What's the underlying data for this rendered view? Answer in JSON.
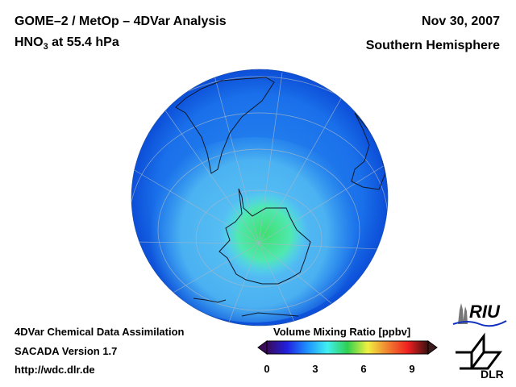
{
  "header": {
    "title_line1": "GOME–2 / MetOp – 4DVar Analysis",
    "title_species": "HNO",
    "title_subscript": "3",
    "title_level": " at 55.4 hPa",
    "date": "Nov 30, 2007",
    "hemisphere": "Southern Hemisphere"
  },
  "footer": {
    "line1": "4DVar Chemical Data Assimilation",
    "line2": "SACADA Version 1.7",
    "line3": "http://wdc.dlr.de"
  },
  "colorbar": {
    "label": "Volume Mixing Ratio [ppbv]",
    "range": [
      0,
      10
    ],
    "ticks": [
      "0",
      "3",
      "6",
      "9"
    ],
    "colors": [
      "#3a0a5a",
      "#2020e0",
      "#1e90ff",
      "#40f0f0",
      "#30d050",
      "#f0f040",
      "#f08030",
      "#f02020",
      "#3a1010"
    ]
  },
  "logos": {
    "riu": "RIU",
    "dlr": "DLR"
  },
  "map": {
    "projection": "orthographic",
    "field_colors": {
      "low": "#1060e8",
      "mid": "#40b0f0",
      "high": "#40e070"
    }
  }
}
